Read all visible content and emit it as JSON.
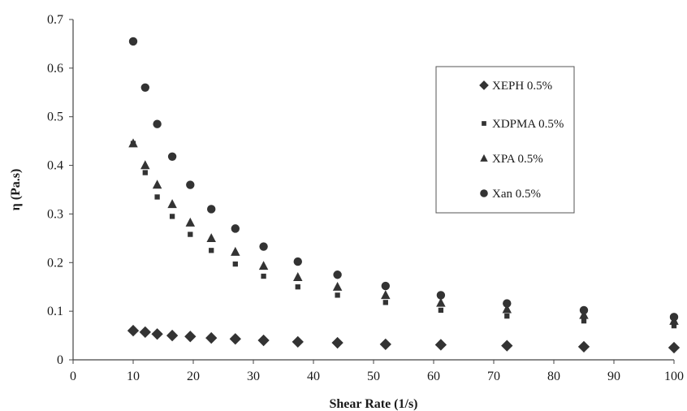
{
  "chart_data": {
    "type": "scatter",
    "title": "",
    "xlabel": "Shear Rate (1/s)",
    "ylabel": "η (Pa.s)",
    "xlim": [
      0,
      100
    ],
    "ylim": [
      0,
      0.7
    ],
    "x_ticks": [
      0,
      10,
      20,
      30,
      40,
      50,
      60,
      70,
      80,
      90,
      100
    ],
    "y_ticks": [
      0,
      0.1,
      0.2,
      0.3,
      0.4,
      0.5,
      0.6,
      0.7
    ],
    "x_tick_labels": [
      "0",
      "10",
      "20",
      "30",
      "40",
      "50",
      "60",
      "70",
      "80",
      "90",
      "100"
    ],
    "y_tick_labels": [
      "0",
      "0.1",
      "0.2",
      "0.3",
      "0.4",
      "0.5",
      "0.6",
      "0.7"
    ],
    "grid": false,
    "legend_position": "top-right",
    "x": [
      10,
      12,
      14,
      16.5,
      19.5,
      23,
      27,
      31.7,
      37.4,
      44,
      52,
      61.2,
      72.2,
      85,
      100
    ],
    "series": [
      {
        "name": "XEPH 0.5%",
        "marker": "diamond",
        "color": "#333333",
        "values": [
          0.06,
          0.057,
          0.053,
          0.05,
          0.048,
          0.045,
          0.043,
          0.04,
          0.037,
          0.035,
          0.032,
          0.031,
          0.029,
          0.027,
          0.025
        ]
      },
      {
        "name": "XDPMA 0.5%",
        "marker": "square",
        "color": "#333333",
        "values": [
          0.445,
          0.385,
          0.335,
          0.295,
          0.258,
          0.225,
          0.197,
          0.172,
          0.15,
          0.133,
          0.118,
          0.102,
          0.09,
          0.08,
          0.07
        ]
      },
      {
        "name": "XPA 0.5%",
        "marker": "triangle",
        "color": "#333333",
        "values": [
          0.445,
          0.4,
          0.36,
          0.32,
          0.282,
          0.25,
          0.222,
          0.193,
          0.17,
          0.15,
          0.133,
          0.117,
          0.104,
          0.092,
          0.08
        ]
      },
      {
        "name": "Xan 0.5%",
        "marker": "circle",
        "color": "#333333",
        "values": [
          0.655,
          0.56,
          0.485,
          0.418,
          0.36,
          0.31,
          0.27,
          0.233,
          0.202,
          0.175,
          0.152,
          0.133,
          0.116,
          0.102,
          0.088
        ]
      }
    ]
  }
}
